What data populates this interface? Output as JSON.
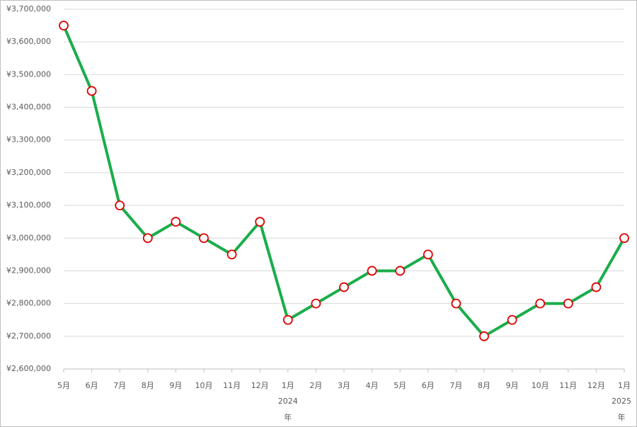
{
  "chart_data": {
    "type": "line",
    "categories": [
      "5月",
      "6月",
      "7月",
      "8月",
      "9月",
      "10月",
      "11月",
      "12月",
      "1月",
      "2月",
      "3月",
      "4月",
      "5月",
      "6月",
      "7月",
      "8月",
      "9月",
      "10月",
      "11月",
      "12月",
      "1月"
    ],
    "group_labels": [
      null,
      null,
      null,
      null,
      null,
      null,
      null,
      null,
      [
        "2024",
        "年"
      ],
      null,
      null,
      null,
      null,
      null,
      null,
      null,
      null,
      null,
      null,
      null,
      [
        "2025",
        "年"
      ]
    ],
    "series": [
      {
        "color": "#1aad4b",
        "marker_edge": "#e00000",
        "values": [
          3650000,
          3450000,
          3100000,
          3000000,
          3050000,
          3000000,
          2950000,
          3050000,
          2750000,
          2800000,
          2850000,
          2900000,
          2900000,
          2950000,
          2800000,
          2700000,
          2750000,
          2800000,
          2800000,
          2850000,
          3000000
        ]
      }
    ],
    "ylim": [
      2600000,
      3700000
    ],
    "yticks": [
      {
        "value": 2600000,
        "label": "¥2,600,000"
      },
      {
        "value": 2700000,
        "label": "¥2,700,000"
      },
      {
        "value": 2800000,
        "label": "¥2,800,000"
      },
      {
        "value": 2900000,
        "label": "¥2,900,000"
      },
      {
        "value": 3000000,
        "label": "¥3,000,000"
      },
      {
        "value": 3100000,
        "label": "¥3,100,000"
      },
      {
        "value": 3200000,
        "label": "¥3,200,000"
      },
      {
        "value": 3300000,
        "label": "¥3,300,000"
      },
      {
        "value": 3400000,
        "label": "¥3,400,000"
      },
      {
        "value": 3500000,
        "label": "¥3,500,000"
      },
      {
        "value": 3600000,
        "label": "¥3,600,000"
      },
      {
        "value": 3700000,
        "label": "¥3,700,000"
      }
    ],
    "grid": true
  }
}
